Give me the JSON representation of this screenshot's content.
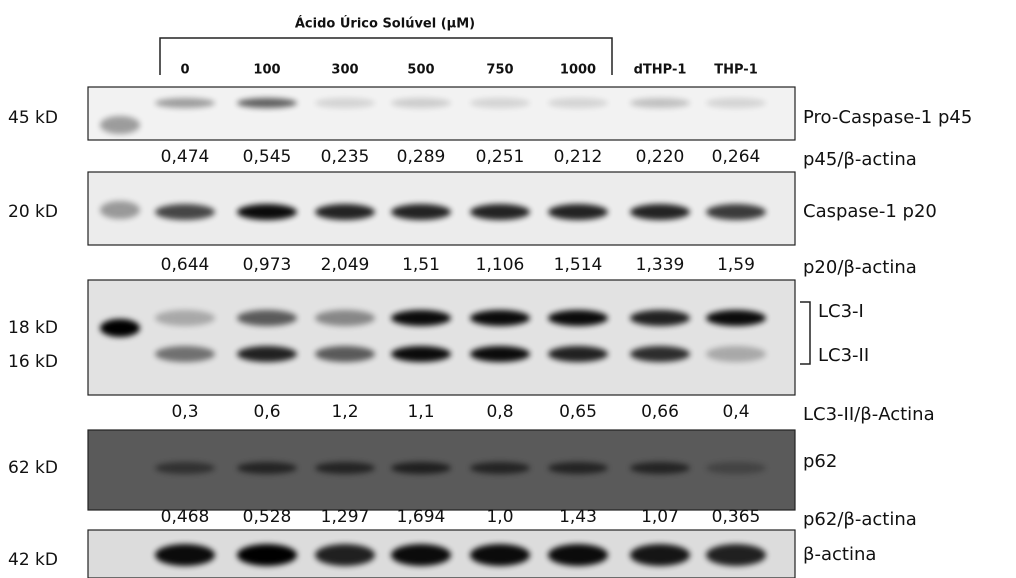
{
  "header": {
    "title": "Ácido Úrico Solúvel (µM)"
  },
  "lanes": [
    "0",
    "100",
    "300",
    "500",
    "750",
    "1000",
    "dTHP-1",
    "THP-1"
  ],
  "blots": [
    {
      "markers": [
        "45 kD"
      ],
      "labels": [
        "Pro-Caspase-1 p45"
      ],
      "ratio_label": "p45/β-actina",
      "ratios": [
        "0,474",
        "0,545",
        "0,235",
        "0,289",
        "0,251",
        "0,212",
        "0,220",
        "0,264"
      ]
    },
    {
      "markers": [
        "20 kD"
      ],
      "labels": [
        "Caspase-1 p20"
      ],
      "ratio_label": "p20/β-actina",
      "ratios": [
        "0,644",
        "0,973",
        "2,049",
        "1,51",
        "1,106",
        "1,514",
        "1,339",
        "1,59"
      ]
    },
    {
      "markers": [
        "18 kD",
        "16 kD"
      ],
      "labels": [
        "LC3-I",
        "LC3-II"
      ],
      "ratio_label": "LC3-II/β-Actina",
      "ratios": [
        "0,3",
        "0,6",
        "1,2",
        "1,1",
        "0,8",
        "0,65",
        "0,66",
        "0,4"
      ]
    },
    {
      "markers": [
        "62 kD"
      ],
      "labels": [
        "p62"
      ],
      "ratio_label": "p62/β-actina",
      "ratios": [
        "0,468",
        "0,528",
        "1,297",
        "1,694",
        "1,0",
        "1,43",
        "1,07",
        "0,365"
      ]
    },
    {
      "markers": [
        "42 kD"
      ],
      "labels": [
        "β-actina"
      ]
    }
  ]
}
